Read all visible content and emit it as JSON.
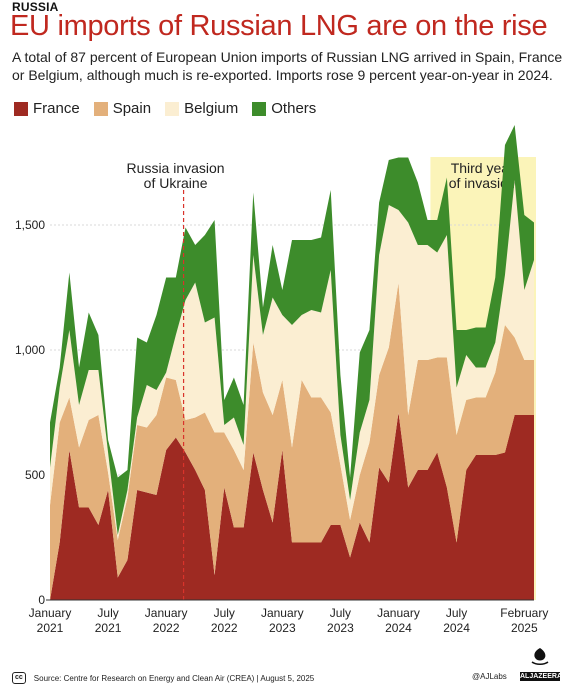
{
  "header": {
    "kicker": "RUSSIA",
    "title": "EU imports of Russian LNG are on the rise",
    "subtitle": "A total of 87 percent of European Union imports of Russian LNG arrived in Spain, France or Belgium, although much is re-exported. Imports rose 9 percent year-on-year in 2024."
  },
  "legend": [
    {
      "label": "France",
      "color": "#9e2a22"
    },
    {
      "label": "Spain",
      "color": "#e3b07b"
    },
    {
      "label": "Belgium",
      "color": "#fbeed2"
    },
    {
      "label": "Others",
      "color": "#3d8c2b"
    }
  ],
  "footer": {
    "license": "cc",
    "source": "Source: Centre for Research on Energy and Clean Air (CREA) | August 5, 2025",
    "credit": "@AJLabs",
    "logo": "ALJAZEERA"
  },
  "chart_data": {
    "type": "area",
    "stacked": true,
    "ylim": [
      0,
      1800
    ],
    "yticks": [
      0,
      500,
      1000,
      1500
    ],
    "ytick_labels": [
      "0",
      "500",
      "1,000",
      "1,500"
    ],
    "x_tick_labels": [
      {
        "month_index": 0,
        "line1": "January",
        "line2": "2021"
      },
      {
        "month_index": 6,
        "line1": "July",
        "line2": "2021"
      },
      {
        "month_index": 12,
        "line1": "January",
        "line2": "2022"
      },
      {
        "month_index": 18,
        "line1": "July",
        "line2": "2022"
      },
      {
        "month_index": 24,
        "line1": "January",
        "line2": "2023"
      },
      {
        "month_index": 30,
        "line1": "July",
        "line2": "2023"
      },
      {
        "month_index": 36,
        "line1": "January",
        "line2": "2024"
      },
      {
        "month_index": 42,
        "line1": "July",
        "line2": "2024"
      },
      {
        "month_index": 49,
        "line1": "February",
        "line2": "2025"
      }
    ],
    "annotations": [
      {
        "type": "line",
        "month_index": 13.8,
        "label": "Russia invasion of Ukraine",
        "label_lines": [
          "Russia invasion",
          "of Ukraine"
        ]
      },
      {
        "type": "band",
        "month_from": 39.3,
        "month_to": 50.0,
        "label": "Third year of invasion",
        "label_lines": [
          "Third year",
          "of invasion"
        ],
        "color": "#fbf4b9"
      }
    ],
    "x": [
      "2021-01",
      "2021-02",
      "2021-03",
      "2021-04",
      "2021-05",
      "2021-06",
      "2021-07",
      "2021-08",
      "2021-09",
      "2021-10",
      "2021-11",
      "2021-12",
      "2022-01",
      "2022-02",
      "2022-03",
      "2022-04",
      "2022-05",
      "2022-06",
      "2022-07",
      "2022-08",
      "2022-09",
      "2022-10",
      "2022-11",
      "2022-12",
      "2023-01",
      "2023-02",
      "2023-03",
      "2023-04",
      "2023-05",
      "2023-06",
      "2023-07",
      "2023-08",
      "2023-09",
      "2023-10",
      "2023-11",
      "2023-12",
      "2024-01",
      "2024-02",
      "2024-03",
      "2024-04",
      "2024-05",
      "2024-06",
      "2024-07",
      "2024-08",
      "2024-09",
      "2024-10",
      "2024-11",
      "2024-12",
      "2025-01",
      "2025-02",
      "2025-03"
    ],
    "series": [
      {
        "name": "France",
        "color": "#9e2a22",
        "values": [
          0,
          230,
          600,
          370,
          370,
          300,
          440,
          90,
          160,
          440,
          430,
          420,
          600,
          650,
          590,
          520,
          440,
          100,
          450,
          290,
          290,
          590,
          440,
          310,
          600,
          230,
          230,
          230,
          230,
          300,
          300,
          170,
          310,
          230,
          530,
          470,
          750,
          450,
          520,
          520,
          590,
          450,
          230,
          520,
          580,
          580,
          580,
          590,
          740,
          740,
          740
        ]
      },
      {
        "name": "Spain",
        "color": "#e3b07b",
        "values": [
          380,
          480,
          210,
          240,
          350,
          440,
          70,
          150,
          250,
          260,
          260,
          320,
          290,
          230,
          130,
          210,
          310,
          570,
          220,
          310,
          230,
          440,
          390,
          430,
          280,
          380,
          650,
          580,
          580,
          450,
          240,
          150,
          190,
          400,
          370,
          540,
          520,
          290,
          440,
          440,
          380,
          520,
          430,
          280,
          230,
          230,
          330,
          510,
          310,
          220,
          220
        ]
      },
      {
        "name": "Belgium",
        "color": "#fbeed2",
        "values": [
          150,
          140,
          270,
          170,
          200,
          180,
          80,
          20,
          30,
          30,
          170,
          100,
          20,
          180,
          480,
          540,
          360,
          460,
          30,
          130,
          100,
          350,
          230,
          470,
          260,
          490,
          260,
          350,
          340,
          570,
          120,
          80,
          170,
          170,
          480,
          570,
          290,
          770,
          460,
          460,
          420,
          490,
          190,
          180,
          120,
          120,
          120,
          200,
          630,
          280,
          400
        ]
      },
      {
        "name": "Others",
        "color": "#3d8c2b",
        "values": [
          180,
          80,
          230,
          150,
          230,
          140,
          50,
          230,
          80,
          320,
          170,
          300,
          380,
          230,
          290,
          150,
          350,
          390,
          100,
          160,
          160,
          250,
          110,
          210,
          100,
          340,
          300,
          280,
          300,
          320,
          240,
          90,
          320,
          280,
          210,
          180,
          210,
          260,
          250,
          100,
          130,
          230,
          230,
          100,
          160,
          160,
          260,
          520,
          220,
          300,
          150
        ]
      }
    ]
  }
}
